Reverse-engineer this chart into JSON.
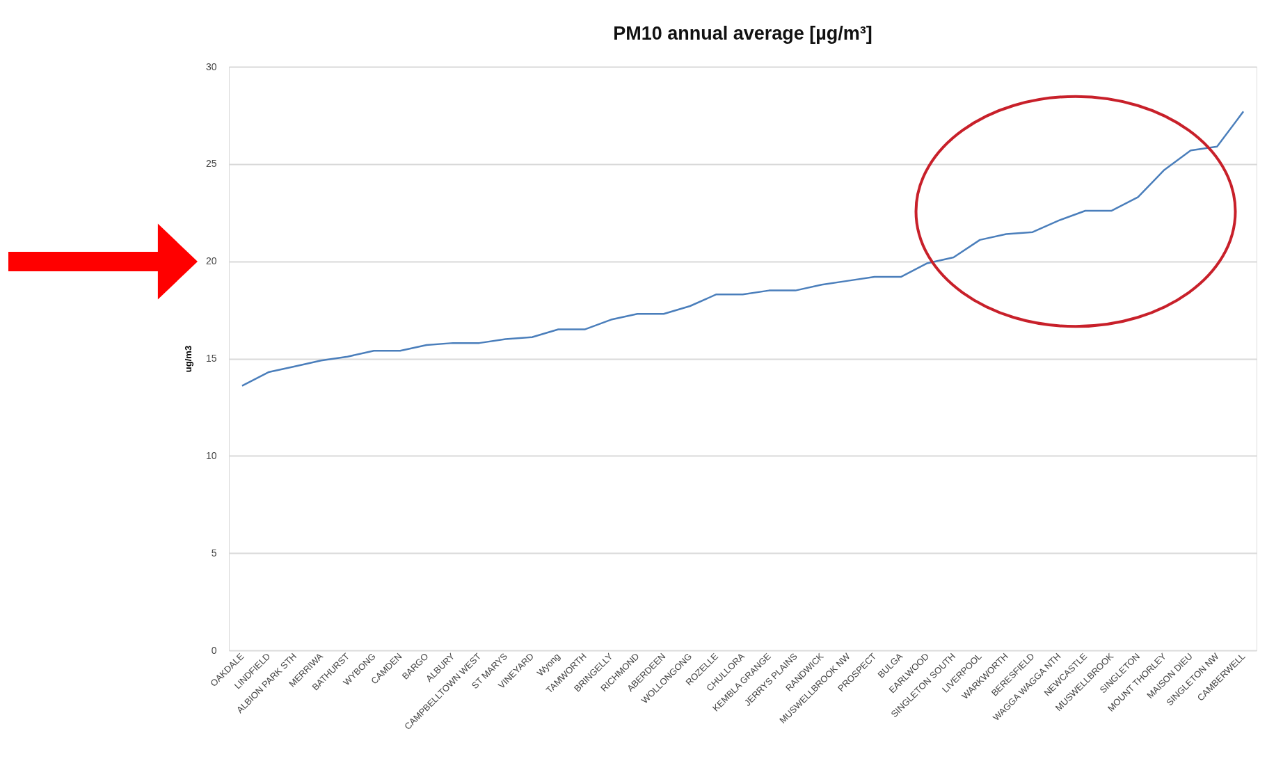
{
  "chart_data": {
    "type": "line",
    "title": "PM10 annual average [µg/m³]",
    "ylabel": "ug/m3",
    "categories": [
      "OAKDALE",
      "LINDFIELD",
      "ALBION PARK STH",
      "MERRIWA",
      "BATHURST",
      "WYBONG",
      "CAMDEN",
      "BARGO",
      "ALBURY",
      "CAMPBELLTOWN WEST",
      "ST MARYS",
      "VINEYARD",
      "Wyong",
      "TAMWORTH",
      "BRINGELLY",
      "RICHMOND",
      "ABERDEEN",
      "WOLLONGONG",
      "ROZELLE",
      "CHULLORA",
      "KEMBLA GRANGE",
      "JERRYS PLAINS",
      "RANDWICK",
      "MUSWELLBROOK NW",
      "PROSPECT",
      "BULGA",
      "EARLWOOD",
      "SINGLETON SOUTH",
      "LIVERPOOL",
      "WARKWORTH",
      "BERESFIELD",
      "WAGGA WAGGA NTH",
      "NEWCASTLE",
      "MUSWELLBROOK",
      "SINGLETON",
      "MOUNT THORLEY",
      "MAISON DIEU",
      "SINGLETON NW",
      "CAMBERWELL"
    ],
    "series": [
      {
        "color": "#4a7ebb",
        "values": [
          13.6,
          14.3,
          14.6,
          14.9,
          15.1,
          15.4,
          15.4,
          15.7,
          15.8,
          15.8,
          16.0,
          16.1,
          16.5,
          16.5,
          17.0,
          17.3,
          17.3,
          17.7,
          18.3,
          18.3,
          18.5,
          18.5,
          18.8,
          19.0,
          19.2,
          19.2,
          19.9,
          20.2,
          21.1,
          21.4,
          21.5,
          22.1,
          22.6,
          22.6,
          23.3,
          24.7,
          25.7,
          25.9,
          27.7
        ]
      }
    ],
    "ylim": [
      0,
      30
    ],
    "yticks": [
      0,
      5,
      10,
      15,
      20,
      25,
      30
    ],
    "grid": "y"
  }
}
